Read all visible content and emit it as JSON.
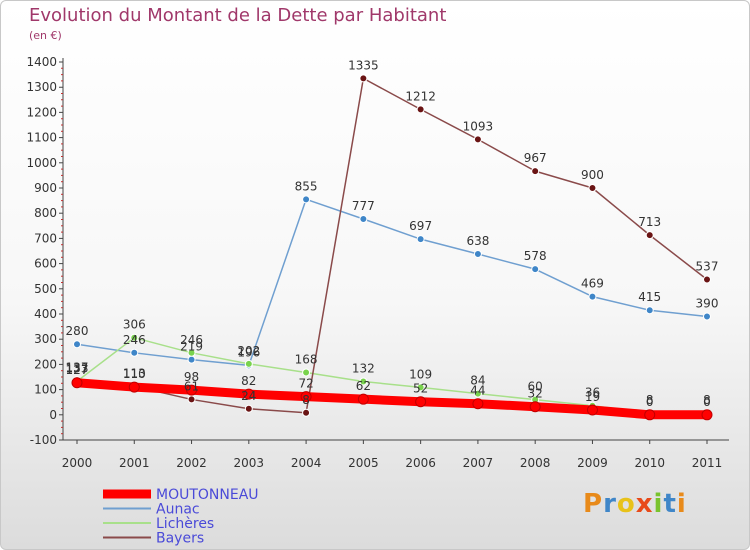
{
  "chart_data": {
    "type": "line",
    "title": "Evolution du Montant de la Dette par Habitant",
    "subtitle": "(en €)",
    "xlabel": "",
    "ylabel": "",
    "x": [
      "2000",
      "2001",
      "2002",
      "2003",
      "2004",
      "2005",
      "2006",
      "2007",
      "2008",
      "2009",
      "2010",
      "2011"
    ],
    "ylim": [
      -100,
      1400
    ],
    "yticks": [
      -100,
      0,
      100,
      200,
      300,
      400,
      500,
      600,
      700,
      800,
      900,
      1000,
      1100,
      1200,
      1300,
      1400
    ],
    "grid": false,
    "legend_position": "bottom-left",
    "series": [
      {
        "name": "MOUTONNEAU",
        "color": "#ff0000",
        "marker_color": "#ff0000",
        "thick": true,
        "values": [
          127,
          110,
          98,
          82,
          72,
          62,
          52,
          44,
          32,
          19,
          0,
          0
        ],
        "labels": [
          "127",
          "110",
          "98",
          "82",
          "72",
          "62",
          "52",
          "44",
          "32",
          "19",
          "0",
          "0"
        ]
      },
      {
        "name": "Aunac",
        "color": "#6f9fd0",
        "marker_color": "#3f86c8",
        "thick": false,
        "values": [
          280,
          246,
          219,
          196,
          855,
          777,
          697,
          638,
          578,
          469,
          415,
          390
        ],
        "labels": [
          "280",
          "246",
          "219",
          "196",
          "855",
          "777",
          "697",
          "638",
          "578",
          "469",
          "415",
          "390"
        ]
      },
      {
        "name": "Lichères",
        "color": "#a8e08a",
        "marker_color": "#79d34d",
        "thick": false,
        "values": [
          133,
          306,
          246,
          202,
          168,
          132,
          109,
          84,
          60,
          36,
          8,
          8
        ],
        "labels": [
          "133",
          "306",
          "246",
          "202",
          "168",
          "132",
          "109",
          "84",
          "60",
          "36",
          "8",
          "8"
        ]
      },
      {
        "name": "Bayers",
        "color": "#8a4a4a",
        "marker_color": "#6a1414",
        "thick": false,
        "values": [
          137,
          113,
          61,
          24,
          8,
          1335,
          1212,
          1093,
          967,
          900,
          713,
          537
        ],
        "labels": [
          "137",
          "113",
          "61",
          "24",
          "8",
          "1335",
          "1212",
          "1093",
          "967",
          "900",
          "713",
          "537"
        ]
      }
    ]
  },
  "logo": {
    "letters": [
      {
        "ch": "P",
        "color": "#e88a1a"
      },
      {
        "ch": "r",
        "color": "#3f86c8"
      },
      {
        "ch": "o",
        "color": "#e8c21a"
      },
      {
        "ch": "x",
        "color": "#e84a1a"
      },
      {
        "ch": "i",
        "color": "#79c32d"
      },
      {
        "ch": "t",
        "color": "#3f86c8"
      },
      {
        "ch": "i",
        "color": "#e88a1a"
      }
    ]
  }
}
